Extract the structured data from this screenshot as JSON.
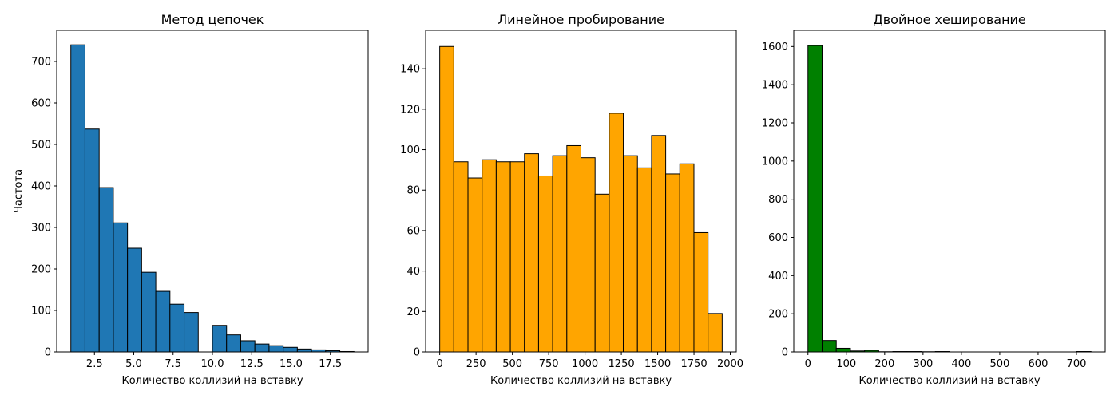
{
  "chart_data": [
    {
      "type": "bar",
      "title": "Метод цепочек",
      "xlabel": "Количество коллизий на вставку",
      "ylabel": "Частота",
      "xlim": [
        0.1,
        19.9
      ],
      "ylim": [
        0,
        775
      ],
      "xticks": [
        2.5,
        5.0,
        7.5,
        10.0,
        12.5,
        15.0,
        17.5
      ],
      "xtick_labels": [
        "2.5",
        "5.0",
        "7.5",
        "10.0",
        "12.5",
        "15.0",
        "17.5"
      ],
      "yticks": [
        0,
        100,
        200,
        300,
        400,
        500,
        600,
        700
      ],
      "ytick_labels": [
        "0",
        "100",
        "200",
        "300",
        "400",
        "500",
        "600",
        "700"
      ],
      "color": "#1f77b4",
      "bin_edges": [
        1.0,
        1.9,
        2.8,
        3.7,
        4.6,
        5.5,
        6.4,
        7.3,
        8.2,
        9.1,
        10.0,
        10.9,
        11.8,
        12.7,
        13.6,
        14.5,
        15.4,
        16.3,
        17.2,
        18.1,
        19.0
      ],
      "values": [
        740,
        537,
        396,
        311,
        250,
        192,
        146,
        115,
        95,
        0,
        64,
        41,
        27,
        19,
        15,
        11,
        7,
        5,
        3,
        1
      ]
    },
    {
      "type": "bar",
      "title": "Линейное пробирование",
      "xlabel": "Количество коллизий на вставку",
      "ylabel": "",
      "xlim": [
        -97,
        2041
      ],
      "ylim": [
        0,
        159
      ],
      "xticks": [
        0,
        250,
        500,
        750,
        1000,
        1250,
        1500,
        1750,
        2000
      ],
      "xtick_labels": [
        "0",
        "250",
        "500",
        "750",
        "1000",
        "1250",
        "1500",
        "1750",
        "2000"
      ],
      "yticks": [
        0,
        20,
        40,
        60,
        80,
        100,
        120,
        140
      ],
      "ytick_labels": [
        "0",
        "20",
        "40",
        "60",
        "80",
        "100",
        "120",
        "140"
      ],
      "color": "#ffa500",
      "bin_edges": [
        0,
        97.2,
        194.4,
        291.6,
        388.8,
        486,
        583.2,
        680.4,
        777.6,
        874.8,
        972,
        1069.2,
        1166.4,
        1263.6,
        1360.8,
        1458,
        1555.2,
        1652.4,
        1749.6,
        1846.8,
        1944
      ],
      "values": [
        151,
        94,
        86,
        95,
        94,
        94,
        98,
        87,
        97,
        102,
        96,
        78,
        118,
        97,
        91,
        107,
        88,
        93,
        59,
        19
      ]
    },
    {
      "type": "bar",
      "title": "Двойное хеширование",
      "xlabel": "Количество коллизий на вставку",
      "ylabel": "",
      "xlim": [
        -37,
        775
      ],
      "ylim": [
        0,
        1685
      ],
      "xticks": [
        0,
        100,
        200,
        300,
        400,
        500,
        600,
        700
      ],
      "xtick_labels": [
        "0",
        "100",
        "200",
        "300",
        "400",
        "500",
        "600",
        "700"
      ],
      "yticks": [
        0,
        200,
        400,
        600,
        800,
        1000,
        1200,
        1400,
        1600
      ],
      "ytick_labels": [
        "0",
        "200",
        "400",
        "600",
        "800",
        "1000",
        "1200",
        "1400",
        "1600"
      ],
      "color": "#008000",
      "bin_edges": [
        0,
        36.9,
        73.8,
        110.7,
        147.6,
        184.5,
        221.4,
        258.3,
        295.2,
        332.1,
        369,
        405.9,
        442.8,
        479.7,
        516.6,
        553.5,
        590.4,
        627.3,
        664.2,
        701.1,
        738
      ],
      "values": [
        1605,
        60,
        19,
        5,
        8,
        1,
        2,
        2,
        1,
        2,
        0,
        0,
        0,
        0,
        0,
        0,
        0,
        0,
        0,
        2
      ]
    }
  ]
}
